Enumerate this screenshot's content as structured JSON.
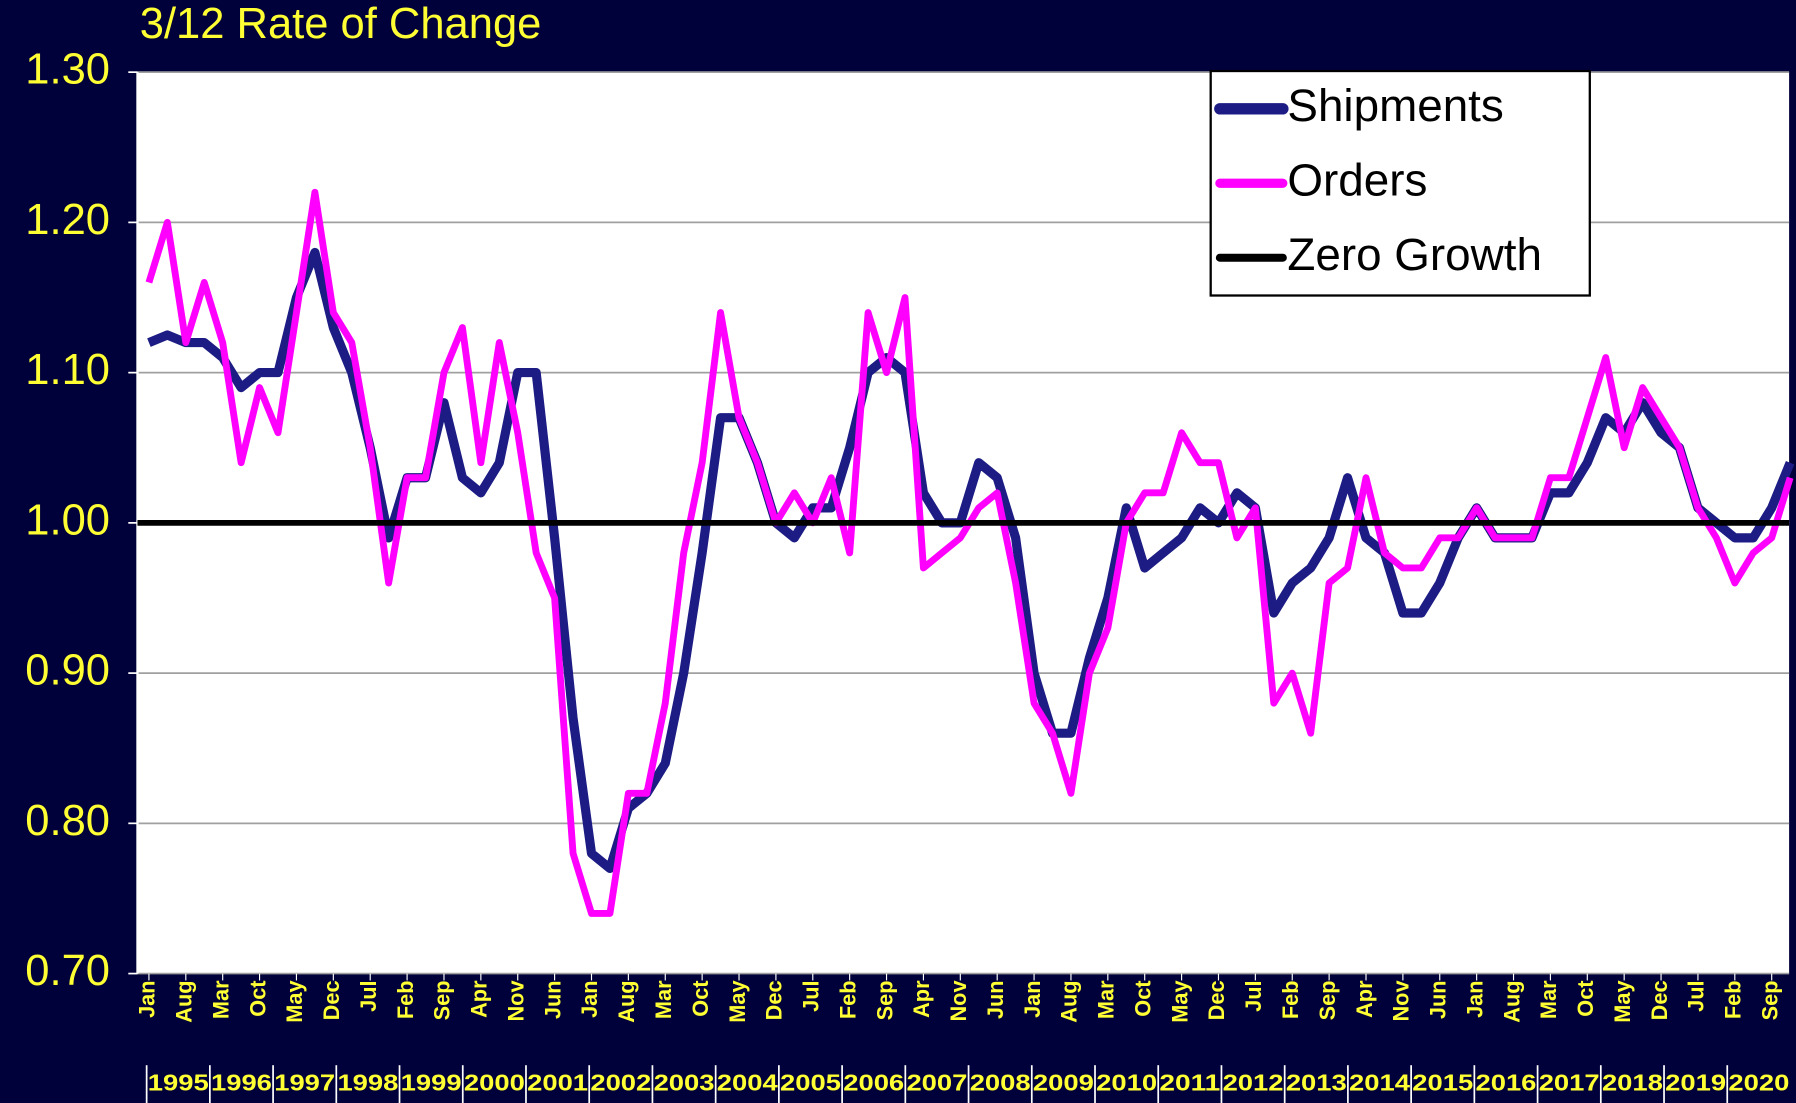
{
  "chart_data": {
    "type": "line",
    "title": "3/12 Rate of Change",
    "categories": [
      "Jan",
      null,
      "Aug",
      null,
      "Mar",
      null,
      "Oct",
      null,
      "May",
      null,
      "Dec",
      null,
      "Jul",
      null,
      "Feb",
      null,
      "Sep",
      null,
      "Apr",
      null,
      "Nov",
      null,
      "Jun",
      null,
      "Jan",
      null,
      "Aug",
      null,
      "Mar",
      null,
      "Oct",
      null,
      "May",
      null,
      "Dec",
      null,
      "Jul",
      null,
      "Feb",
      null,
      "Sep",
      null,
      "Apr",
      null,
      "Nov",
      null,
      "Jun",
      null,
      "Jan",
      null,
      "Aug",
      null,
      "Mar",
      null,
      "Oct",
      null,
      "May",
      null,
      "Dec",
      null,
      "Jul",
      null,
      "Feb",
      null,
      "Sep",
      null,
      "Apr",
      null,
      "Nov",
      null,
      "Jun",
      null,
      "Jan",
      null,
      "Aug",
      null,
      "Mar",
      null,
      "Oct",
      null,
      "May",
      null,
      "Dec",
      null,
      "Jul",
      null,
      "Feb",
      null,
      "Sep",
      null
    ],
    "years": [
      "1995",
      "1996",
      "1997",
      "1998",
      "1999",
      "2000",
      "2001",
      "2002",
      "2003",
      "2004",
      "2005",
      "2006",
      "2007",
      "2008",
      "2009",
      "2010",
      "2011",
      "2012",
      "2013",
      "2014",
      "2015",
      "2016",
      "2017",
      "2018",
      "2019",
      "2020"
    ],
    "series": [
      {
        "name": "Shipments",
        "color": "#1c1c84",
        "values": [
          1.12,
          1.125,
          1.12,
          1.12,
          1.11,
          1.09,
          1.1,
          1.1,
          1.15,
          1.18,
          1.13,
          1.1,
          1.05,
          0.99,
          1.03,
          1.03,
          1.08,
          1.03,
          1.02,
          1.04,
          1.1,
          1.1,
          0.99,
          0.87,
          0.78,
          0.77,
          0.81,
          0.82,
          0.84,
          0.9,
          0.98,
          1.07,
          1.07,
          1.04,
          1.0,
          0.99,
          1.01,
          1.01,
          1.05,
          1.1,
          1.11,
          1.1,
          1.02,
          1.0,
          1.0,
          1.04,
          1.03,
          0.99,
          0.9,
          0.86,
          0.86,
          0.91,
          0.95,
          1.01,
          0.97,
          0.98,
          0.99,
          1.01,
          1.0,
          1.02,
          1.01,
          0.94,
          0.96,
          0.97,
          0.99,
          1.03,
          0.99,
          0.98,
          0.94,
          0.94,
          0.96,
          0.99,
          1.01,
          0.99,
          0.99,
          0.99,
          1.02,
          1.02,
          1.04,
          1.07,
          1.06,
          1.08,
          1.06,
          1.05,
          1.01,
          1.0,
          0.99,
          0.99,
          1.01,
          1.04
        ]
      },
      {
        "name": "Orders",
        "color": "#ff00ff",
        "values": [
          1.16,
          1.2,
          1.12,
          1.16,
          1.12,
          1.04,
          1.09,
          1.06,
          1.14,
          1.22,
          1.14,
          1.12,
          1.05,
          0.96,
          1.03,
          1.03,
          1.1,
          1.13,
          1.04,
          1.12,
          1.06,
          0.98,
          0.95,
          0.78,
          0.74,
          0.74,
          0.82,
          0.82,
          0.88,
          0.98,
          1.04,
          1.14,
          1.07,
          1.04,
          1.0,
          1.02,
          1.0,
          1.03,
          0.98,
          1.14,
          1.1,
          1.15,
          0.97,
          0.98,
          0.99,
          1.01,
          1.02,
          0.96,
          0.88,
          0.86,
          0.82,
          0.9,
          0.93,
          1.0,
          1.02,
          1.02,
          1.06,
          1.04,
          1.04,
          0.99,
          1.01,
          0.88,
          0.9,
          0.86,
          0.96,
          0.97,
          1.03,
          0.98,
          0.97,
          0.97,
          0.99,
          0.99,
          1.01,
          0.99,
          0.99,
          0.99,
          1.03,
          1.03,
          1.07,
          1.11,
          1.05,
          1.09,
          1.07,
          1.05,
          1.01,
          0.99,
          0.96,
          0.98,
          0.99,
          1.03
        ]
      }
    ],
    "reference_line": {
      "name": "Zero Growth",
      "value": 1.0,
      "color": "#000000"
    },
    "ylim": [
      0.7,
      1.3
    ],
    "yticks": [
      {
        "value": 0.7,
        "label": "0.70"
      },
      {
        "value": 0.8,
        "label": "0.80"
      },
      {
        "value": 0.9,
        "label": "0.90"
      },
      {
        "value": 1.0,
        "label": "1.00"
      },
      {
        "value": 1.1,
        "label": "1.10"
      },
      {
        "value": 1.2,
        "label": "1.20"
      },
      {
        "value": 1.3,
        "label": "1.30"
      }
    ],
    "grid": true,
    "legend": "top-right"
  }
}
